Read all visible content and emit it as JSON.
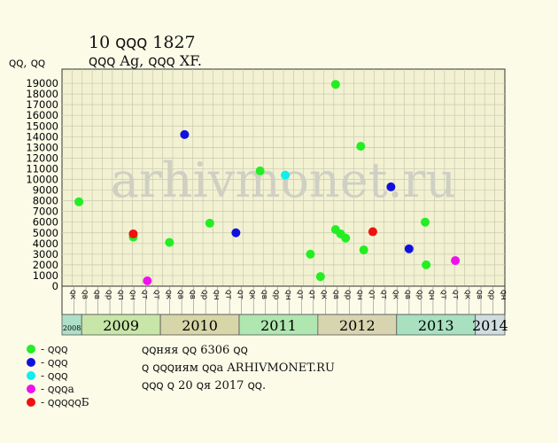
{
  "header": {
    "title": "10 ꞯꞯꞯ 1827",
    "subtitle": "ꞯꞯꞯ Ag, ꞯꞯꞯ XF.",
    "units": "ꞯꞯ, ꞯꞯ"
  },
  "watermark": "arhivmonet.ru",
  "notes": [
    "ꞯꞯняя ꞯꞯ 6306 ꞯꞯ",
    "ꞯ ꞯꞯꞯиям ꞯꞯа ARHIVMONET.RU",
    "ꞯꞯꞯ ꞯ 20 ꞯя 2017 ꞯꞯ."
  ],
  "legend": [
    {
      "label": "- ꞯꞯꞯ",
      "color": "#22ee22"
    },
    {
      "label": "- ꞯꞯꞯ",
      "color": "#1111dd"
    },
    {
      "label": "- ꞯꞯꞯ",
      "color": "#11eeee"
    },
    {
      "label": "- ꞯꞯꞯа",
      "color": "#ee11ee"
    },
    {
      "label": "- ꞯꞯꞯꞯꞯБ",
      "color": "#ee1111"
    }
  ],
  "chart_data": {
    "type": "scatter",
    "ylim": [
      0,
      20000
    ],
    "yticks": [
      0,
      1000,
      2000,
      3000,
      4000,
      5000,
      6000,
      7000,
      8000,
      9000,
      10000,
      11000,
      12000,
      13000,
      14000,
      15000,
      16000,
      17000,
      18000,
      19000
    ],
    "grid": true,
    "month_labels": [
      "ꞯк",
      "ꞯв",
      "ꞯв",
      "ꞯр",
      "ꞯп",
      "ꞯн",
      "ꞯт",
      "ꞯт",
      "ꞯк",
      "ꞯв",
      "ꞯв",
      "ꞯр",
      "ꞯн",
      "ꞯт",
      "ꞯт",
      "ꞯк",
      "ꞯв",
      "ꞯр",
      "ꞯн",
      "ꞯт",
      "ꞯт",
      "ꞯк",
      "ꞯв",
      "ꞯр",
      "ꞯн",
      "ꞯт",
      "ꞯт",
      "ꞯк",
      "ꞯв",
      "ꞯр",
      "ꞯн",
      "ꞯт",
      "ꞯт",
      "ꞯк",
      "ꞯв",
      "ꞯр",
      "ꞯн"
    ],
    "years": [
      {
        "label": "2008",
        "start": 0,
        "end": 2,
        "color": "#aee0c8"
      },
      {
        "label": "2009",
        "start": 2,
        "end": 10,
        "color": "#c8e6a8"
      },
      {
        "label": "2010",
        "start": 10,
        "end": 18,
        "color": "#d6d6a8"
      },
      {
        "label": "2011",
        "start": 18,
        "end": 26,
        "color": "#b0e6b0"
      },
      {
        "label": "2012",
        "start": 26,
        "end": 34,
        "color": "#d8d4b0"
      },
      {
        "label": "2013",
        "start": 34,
        "end": 42,
        "color": "#a8e0c0"
      },
      {
        "label": "2014",
        "start": 42,
        "end": 45,
        "color": "#d0dde0"
      }
    ],
    "series": [
      {
        "name": "- ꞯꞯꞯ",
        "color": "#22ee22",
        "points": [
          [
            0.8,
            7900
          ],
          [
            6.2,
            4600
          ],
          [
            9.8,
            4100
          ],
          [
            13.8,
            5900
          ],
          [
            18.8,
            10800
          ],
          [
            23.8,
            3000
          ],
          [
            24.8,
            900
          ],
          [
            26.3,
            18900
          ],
          [
            26.3,
            5300
          ],
          [
            26.8,
            4900
          ],
          [
            27.3,
            4500
          ],
          [
            28.8,
            13100
          ],
          [
            29.1,
            3400
          ],
          [
            35.2,
            6000
          ],
          [
            35.3,
            2000
          ]
        ]
      },
      {
        "name": "- ꞯꞯꞯ",
        "color": "#1111dd",
        "points": [
          [
            11.3,
            14200
          ],
          [
            16.4,
            5000
          ],
          [
            31.8,
            9300
          ],
          [
            33.6,
            3500
          ]
        ]
      },
      {
        "name": "- ꞯꞯꞯ",
        "color": "#11eeee",
        "points": [
          [
            21.3,
            10400
          ]
        ]
      },
      {
        "name": "- ꞯꞯꞯа",
        "color": "#ee11ee",
        "points": [
          [
            7.6,
            500
          ],
          [
            38.2,
            2400
          ]
        ]
      },
      {
        "name": "- ꞯꞯꞯꞯꞯБ",
        "color": "#ee1111",
        "points": [
          [
            6.2,
            4900
          ],
          [
            30.0,
            5100
          ]
        ]
      }
    ]
  }
}
